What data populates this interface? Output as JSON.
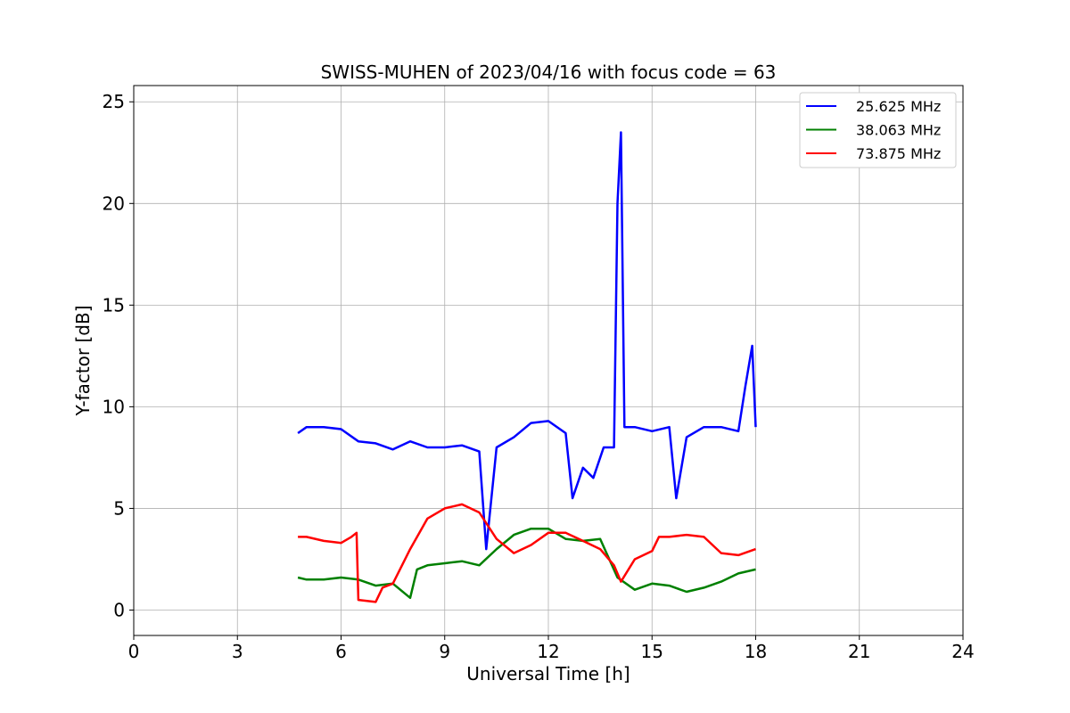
{
  "chart_data": {
    "type": "line",
    "title": "SWISS-MUHEN of 2023/04/16 with focus code = 63",
    "xlabel": "Universal Time [h]",
    "ylabel": "Y-factor [dB]",
    "xlim": [
      0,
      24
    ],
    "ylim": [
      -1.25,
      25.8
    ],
    "xticks": [
      0,
      3,
      6,
      9,
      12,
      15,
      18,
      21,
      24
    ],
    "yticks": [
      0,
      5,
      10,
      15,
      20,
      25
    ],
    "grid": true,
    "legend_position": "top-right",
    "series": [
      {
        "name": "25.625 MHz",
        "color": "#0000ff",
        "x": [
          4.75,
          5.0,
          5.5,
          6.0,
          6.5,
          7.0,
          7.5,
          8.0,
          8.5,
          9.0,
          9.5,
          10.0,
          10.2,
          10.5,
          11.0,
          11.5,
          12.0,
          12.5,
          12.7,
          13.0,
          13.3,
          13.6,
          13.9,
          14.0,
          14.1,
          14.2,
          14.5,
          15.0,
          15.5,
          15.7,
          16.0,
          16.5,
          17.0,
          17.5,
          17.7,
          17.9,
          18.0
        ],
        "y": [
          8.7,
          9.0,
          9.0,
          8.9,
          8.3,
          8.2,
          7.9,
          8.3,
          8.0,
          8.0,
          8.1,
          7.8,
          3.0,
          8.0,
          8.5,
          9.2,
          9.3,
          8.7,
          5.5,
          7.0,
          6.5,
          8.0,
          8.0,
          20.0,
          23.5,
          9.0,
          9.0,
          8.8,
          9.0,
          5.5,
          8.5,
          9.0,
          9.0,
          8.8,
          11.0,
          13.0,
          9.0
        ]
      },
      {
        "name": "38.063 MHz",
        "color": "#008000",
        "x": [
          4.75,
          5.0,
          5.5,
          6.0,
          6.5,
          7.0,
          7.5,
          8.0,
          8.2,
          8.5,
          9.0,
          9.5,
          10.0,
          10.5,
          11.0,
          11.5,
          12.0,
          12.5,
          13.0,
          13.5,
          14.0,
          14.5,
          15.0,
          15.5,
          16.0,
          16.5,
          17.0,
          17.5,
          18.0
        ],
        "y": [
          1.6,
          1.5,
          1.5,
          1.6,
          1.5,
          1.2,
          1.3,
          0.6,
          2.0,
          2.2,
          2.3,
          2.4,
          2.2,
          3.0,
          3.7,
          4.0,
          4.0,
          3.5,
          3.4,
          3.5,
          1.6,
          1.0,
          1.3,
          1.2,
          0.9,
          1.1,
          1.4,
          1.8,
          2.0
        ]
      },
      {
        "name": "73.875 MHz",
        "color": "#ff0000",
        "x": [
          4.75,
          5.0,
          5.5,
          6.0,
          6.3,
          6.45,
          6.5,
          7.0,
          7.2,
          7.5,
          8.0,
          8.5,
          9.0,
          9.5,
          10.0,
          10.5,
          11.0,
          11.5,
          12.0,
          12.5,
          13.0,
          13.5,
          13.9,
          14.1,
          14.5,
          15.0,
          15.2,
          15.5,
          16.0,
          16.5,
          17.0,
          17.5,
          18.0
        ],
        "y": [
          3.6,
          3.6,
          3.4,
          3.3,
          3.6,
          3.8,
          0.5,
          0.4,
          1.1,
          1.3,
          3.0,
          4.5,
          5.0,
          5.2,
          4.8,
          3.5,
          2.8,
          3.2,
          3.8,
          3.8,
          3.4,
          3.0,
          2.2,
          1.4,
          2.5,
          2.9,
          3.6,
          3.6,
          3.7,
          3.6,
          2.8,
          2.7,
          3.0
        ]
      }
    ]
  }
}
